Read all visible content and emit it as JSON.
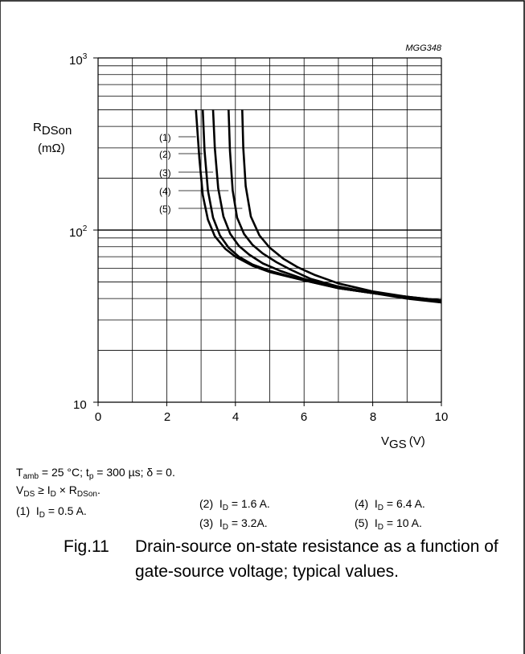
{
  "chart_data": {
    "type": "line",
    "xlabel_main": "V",
    "xlabel_sub": "GS",
    "xlabel_unit": "(V)",
    "ylabel_main": "R",
    "ylabel_sub": "DSon",
    "ylabel_unit": "(mΩ)",
    "code": "MGG348",
    "xlim": [
      0,
      10
    ],
    "ylim": [
      10,
      1000
    ],
    "yscale": "log",
    "grid": true,
    "x_ticks": [
      "0",
      "2",
      "4",
      "6",
      "8",
      "10"
    ],
    "y_ticks": [
      {
        "base": "10",
        "exp": "3",
        "value": 1000
      },
      {
        "base": "10",
        "exp": "2",
        "value": 100
      },
      {
        "base": "10",
        "exp": "",
        "value": 10
      }
    ],
    "series": [
      {
        "name": "(1)",
        "x": [
          2.85,
          2.95,
          3.05,
          3.2,
          3.4,
          3.7,
          4.0,
          4.5,
          5.0,
          6.0,
          7.0,
          8.0,
          9.0,
          10.0
        ],
        "y": [
          500,
          260,
          160,
          115,
          92,
          78,
          70,
          62,
          57,
          51,
          46,
          43,
          41,
          39
        ]
      },
      {
        "name": "(2)",
        "x": [
          3.05,
          3.1,
          3.2,
          3.35,
          3.55,
          3.8,
          4.1,
          4.5,
          5.0,
          6.0,
          7.0,
          8.0,
          9.0,
          10.0
        ],
        "y": [
          500,
          290,
          170,
          118,
          93,
          79,
          70,
          63,
          58,
          51,
          46,
          43,
          41,
          39
        ]
      },
      {
        "name": "(3)",
        "x": [
          3.35,
          3.4,
          3.5,
          3.65,
          3.85,
          4.1,
          4.4,
          4.8,
          5.3,
          6.0,
          7.0,
          8.0,
          9.0,
          10.0
        ],
        "y": [
          500,
          300,
          175,
          120,
          95,
          81,
          72,
          64,
          58,
          52,
          46,
          43,
          41,
          38
        ]
      },
      {
        "name": "(4)",
        "x": [
          3.8,
          3.84,
          3.92,
          4.05,
          4.25,
          4.5,
          4.8,
          5.2,
          5.6,
          6.2,
          7.0,
          8.0,
          9.0,
          10.0
        ],
        "y": [
          500,
          290,
          170,
          118,
          95,
          82,
          73,
          65,
          59,
          52,
          47,
          43,
          40,
          38
        ]
      },
      {
        "name": "(5)",
        "x": [
          4.2,
          4.23,
          4.3,
          4.45,
          4.7,
          5.0,
          5.4,
          5.8,
          6.3,
          7.0,
          8.0,
          9.0,
          10.0
        ],
        "y": [
          500,
          300,
          180,
          120,
          93,
          79,
          68,
          61,
          55,
          49,
          44,
          41,
          38
        ]
      }
    ]
  },
  "caption": {
    "line1": {
      "t": "T",
      "t_sub": "amb",
      "rest": " = 25 °C; t",
      "tp_sub": "p",
      "rest2": " = 300 µs; δ = 0."
    },
    "line2": {
      "v": "V",
      "v_sub": "DS",
      "mid": " ≥ I",
      "i_sub": "D",
      "mid2": " × R",
      "r_sub": "DSon",
      "end": "."
    },
    "legend": [
      {
        "num": "(1)",
        "pre": "I",
        "sub": "D",
        "val": " = 0.5 A."
      },
      {
        "num": "(2)",
        "pre": "I",
        "sub": "D",
        "val": " = 1.6 A."
      },
      {
        "num": "(3)",
        "pre": "I",
        "sub": "D",
        "val": " = 3.2A."
      },
      {
        "num": "(4)",
        "pre": "I",
        "sub": "D",
        "val": " = 6.4 A."
      },
      {
        "num": "(5)",
        "pre": "I",
        "sub": "D",
        "val": " = 10 A."
      }
    ]
  },
  "figure": {
    "number": "Fig.11",
    "description": "Drain-source on-state resistance as a function of gate-source voltage; typical values."
  }
}
